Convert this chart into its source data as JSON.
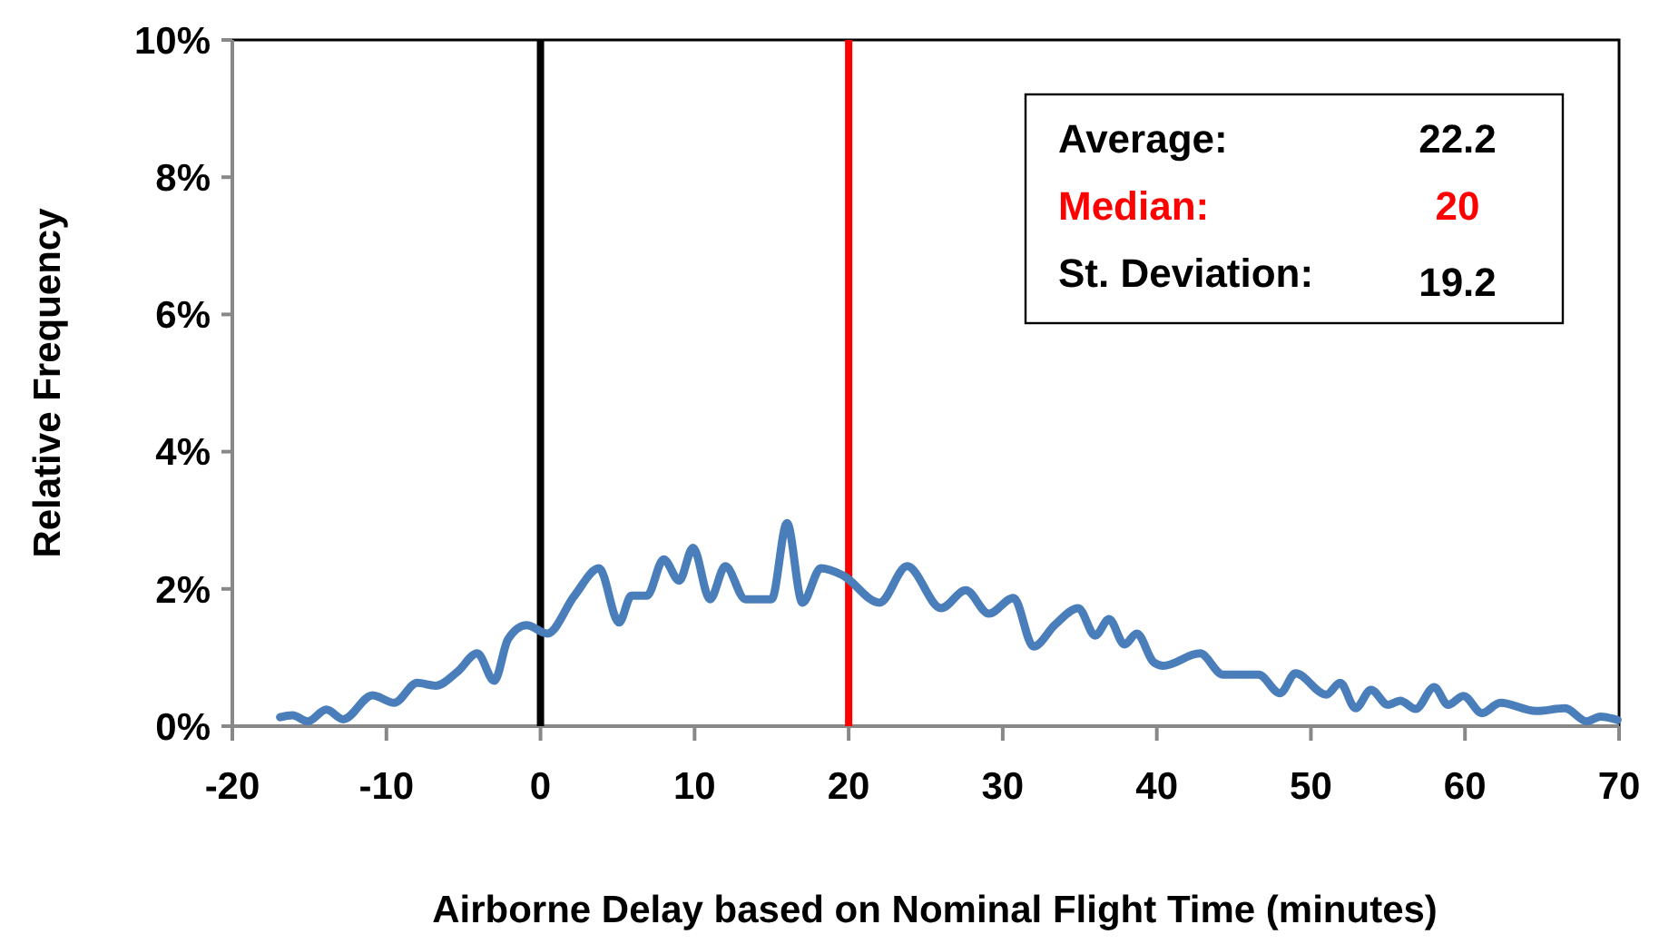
{
  "chart_data": {
    "type": "line",
    "xlabel": "Airborne Delay based on Nominal Flight Time (minutes)",
    "ylabel": "Relative Frequency",
    "xlim": [
      -20,
      70
    ],
    "xticks": [
      -20,
      -10,
      0,
      10,
      20,
      30,
      40,
      50,
      60,
      70
    ],
    "ylim": [
      0,
      10
    ],
    "yticks": [
      {
        "value": 0,
        "label": "0%"
      },
      {
        "value": 2,
        "label": "2%"
      },
      {
        "value": 4,
        "label": "4%"
      },
      {
        "value": 6,
        "label": "6%"
      },
      {
        "value": 8,
        "label": "8%"
      },
      {
        "value": 10,
        "label": "10%"
      }
    ],
    "grid": false,
    "line_style": "solid",
    "series": [
      {
        "color": "#4a7ebb",
        "x": [
          -16.9,
          -16.1,
          -15.1,
          -13.9,
          -12.8,
          -10.9,
          -9.5,
          -8,
          -6.8,
          -5.4,
          -4.1,
          -3,
          -2.1,
          -0.9,
          0.45,
          2.2,
          3.8,
          5.1,
          5.9,
          6.9,
          8,
          9,
          9.9,
          11,
          12,
          13.3,
          15,
          16,
          17,
          18.2,
          19.6,
          22,
          23.8,
          26,
          27.6,
          29.1,
          30.7,
          32,
          33.4,
          34.9,
          36,
          36.9,
          37.9,
          38.7,
          39.8,
          40.4,
          42.8,
          44.3,
          46.6,
          48,
          49,
          51,
          51.9,
          52.9,
          53.9,
          55,
          55.8,
          56.8,
          58,
          58.9,
          59.9,
          61.1,
          62.3,
          64.6,
          66.5,
          67.9,
          68.8,
          69.9
        ],
        "values": [
          0.13,
          0.16,
          0.07,
          0.24,
          0.1,
          0.45,
          0.34,
          0.63,
          0.59,
          0.79,
          1.06,
          0.66,
          1.27,
          1.47,
          1.35,
          1.9,
          2.3,
          1.51,
          1.9,
          1.9,
          2.43,
          2.12,
          2.6,
          1.85,
          2.33,
          1.85,
          1.85,
          2.96,
          1.8,
          2.3,
          2.2,
          1.8,
          2.33,
          1.72,
          1.98,
          1.64,
          1.87,
          1.16,
          1.48,
          1.72,
          1.32,
          1.56,
          1.19,
          1.35,
          0.93,
          0.88,
          1.06,
          0.75,
          0.75,
          0.48,
          0.77,
          0.46,
          0.63,
          0.26,
          0.53,
          0.31,
          0.37,
          0.25,
          0.57,
          0.31,
          0.44,
          0.19,
          0.34,
          0.22,
          0.26,
          0.07,
          0.14,
          0.09
        ]
      }
    ],
    "ref_lines": [
      {
        "axis": "x",
        "value": 0,
        "color": "#000000"
      },
      {
        "axis": "x",
        "value": 20,
        "color": "#ff0000"
      }
    ],
    "annotations": [
      "Average:",
      "22.2",
      "Median:",
      "20",
      "St. Deviation:",
      "19.2"
    ]
  }
}
